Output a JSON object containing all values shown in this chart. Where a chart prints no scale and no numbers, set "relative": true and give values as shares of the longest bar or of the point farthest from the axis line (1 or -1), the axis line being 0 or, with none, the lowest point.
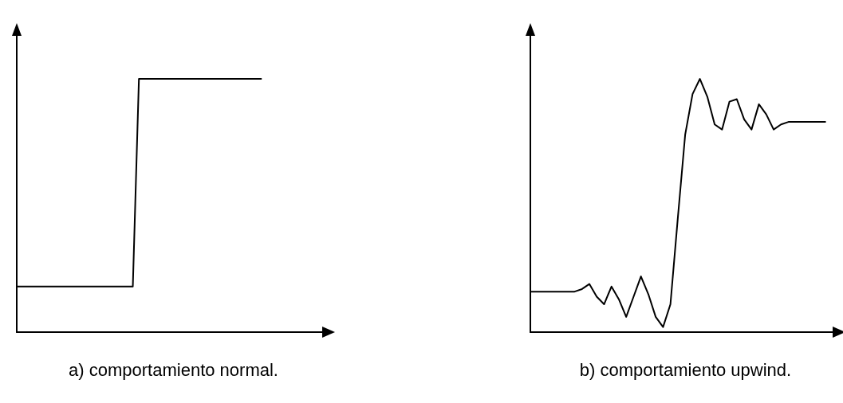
{
  "chart_data": [
    {
      "type": "line",
      "title": "a) comportamiento normal.",
      "relative": true,
      "color": "#000000",
      "categories": [
        null,
        null,
        null,
        null,
        null,
        null,
        null,
        null,
        null,
        null,
        null,
        null,
        null,
        null,
        null,
        null,
        null,
        null,
        null,
        null,
        null,
        null,
        null,
        null,
        null,
        null,
        null,
        null,
        null,
        null,
        null,
        null,
        null,
        null,
        null,
        null,
        null,
        null,
        null,
        null,
        null,
        null,
        null,
        null,
        null,
        null,
        null,
        null,
        null,
        null,
        null
      ],
      "values": [
        0.18,
        0.18,
        0.18,
        0.18,
        0.18,
        0.18,
        0.18,
        0.18,
        0.18,
        0.18,
        0.18,
        0.18,
        0.18,
        0.18,
        0.18,
        0.18,
        0.18,
        0.18,
        0.18,
        0.18,
        1,
        1,
        1,
        1,
        1,
        1,
        1,
        1,
        1,
        1,
        1,
        1,
        1,
        1,
        1,
        1,
        1,
        1,
        1,
        1,
        1,
        null,
        null,
        null,
        null,
        null,
        null,
        null,
        null,
        null,
        null
      ]
    },
    {
      "type": "line",
      "title": "b) comportamiento upwind.",
      "relative": true,
      "color": "#000000",
      "categories": [
        null,
        null,
        null,
        null,
        null,
        null,
        null,
        null,
        null,
        null,
        null,
        null,
        null,
        null,
        null,
        null,
        null,
        null,
        null,
        null,
        null,
        null,
        null,
        null,
        null,
        null,
        null,
        null,
        null,
        null,
        null,
        null,
        null,
        null,
        null,
        null,
        null,
        null,
        null,
        null,
        null,
        null
      ],
      "values": [
        0.16,
        0.16,
        0.16,
        0.16,
        0.16,
        0.16,
        0.16,
        0.17,
        0.19,
        0.14,
        0.11,
        0.18,
        0.13,
        0.06,
        0.14,
        0.22,
        0.15,
        0.06,
        0.02,
        0.11,
        0.45,
        0.78,
        0.94,
        1,
        0.93,
        0.82,
        0.8,
        0.91,
        0.92,
        0.84,
        0.8,
        0.9,
        0.86,
        0.8,
        0.82,
        0.83,
        0.83,
        0.83,
        0.83,
        0.83,
        0.83,
        null
      ]
    }
  ]
}
